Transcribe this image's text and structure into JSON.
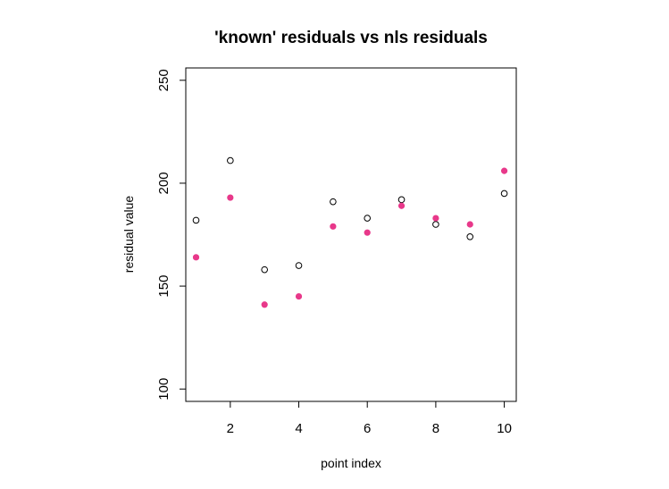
{
  "chart_data": {
    "type": "scatter",
    "title": "'known' residuals vs nls residuals",
    "xlabel": "point index",
    "ylabel": "residual value",
    "xlim": [
      0.7,
      10.35
    ],
    "ylim": [
      94,
      256
    ],
    "x_ticks": [
      2,
      4,
      6,
      8,
      10
    ],
    "y_ticks": [
      100,
      150,
      200,
      250
    ],
    "grid": false,
    "box": true,
    "series": [
      {
        "marker": "open-circle",
        "color": "#000000",
        "x": [
          1,
          2,
          3,
          4,
          5,
          6,
          7,
          8,
          9,
          10
        ],
        "y": [
          182,
          211,
          158,
          160,
          191,
          183,
          192,
          180,
          174,
          195
        ]
      },
      {
        "marker": "filled-circle",
        "color": "#E8388A",
        "x": [
          1,
          2,
          3,
          4,
          5,
          6,
          7,
          8,
          9,
          10
        ],
        "y": [
          164,
          193,
          141,
          145,
          179,
          176,
          189,
          183,
          180,
          206
        ]
      }
    ]
  }
}
